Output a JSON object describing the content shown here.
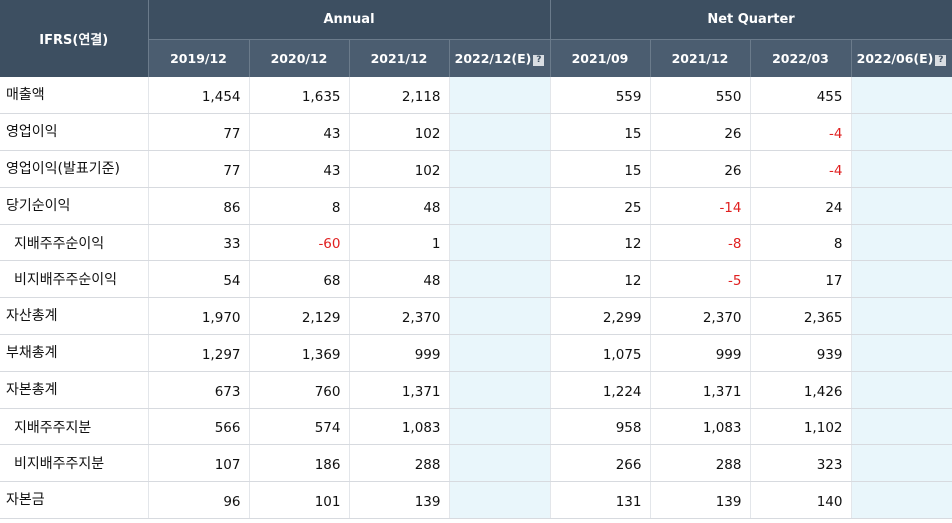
{
  "header": {
    "corner": "IFRS(연결)",
    "group_annual": "Annual",
    "group_quarter": "Net Quarter",
    "estimate_icon": "?",
    "columns": [
      "2019/12",
      "2020/12",
      "2021/12",
      "2022/12(E)",
      "2021/09",
      "2021/12",
      "2022/03",
      "2022/06(E)"
    ]
  },
  "rows": [
    {
      "label": "매출액",
      "values": [
        "1,454",
        "1,635",
        "2,118",
        "",
        "559",
        "550",
        "455",
        ""
      ]
    },
    {
      "label": "영업이익",
      "values": [
        "77",
        "43",
        "102",
        "",
        "15",
        "26",
        "-4",
        ""
      ]
    },
    {
      "label": "영업이익(발표기준)",
      "values": [
        "77",
        "43",
        "102",
        "",
        "15",
        "26",
        "-4",
        ""
      ]
    },
    {
      "label": "당기순이익",
      "values": [
        "86",
        "8",
        "48",
        "",
        "25",
        "-14",
        "24",
        ""
      ]
    },
    {
      "label": "지배주주순이익",
      "values": [
        "33",
        "-60",
        "1",
        "",
        "12",
        "-8",
        "8",
        ""
      ]
    },
    {
      "label": "비지배주주순이익",
      "values": [
        "54",
        "68",
        "48",
        "",
        "12",
        "-5",
        "17",
        ""
      ]
    },
    {
      "label": "자산총계",
      "values": [
        "1,970",
        "2,129",
        "2,370",
        "",
        "2,299",
        "2,370",
        "2,365",
        ""
      ]
    },
    {
      "label": "부채총계",
      "values": [
        "1,297",
        "1,369",
        "999",
        "",
        "1,075",
        "999",
        "939",
        ""
      ]
    },
    {
      "label": "자본총계",
      "values": [
        "673",
        "760",
        "1,371",
        "",
        "1,224",
        "1,371",
        "1,426",
        ""
      ]
    },
    {
      "label": "지배주주지분",
      "values": [
        "566",
        "574",
        "1,083",
        "",
        "958",
        "1,083",
        "1,102",
        ""
      ]
    },
    {
      "label": "비지배주주지분",
      "values": [
        "107",
        "186",
        "288",
        "",
        "266",
        "288",
        "323",
        ""
      ]
    },
    {
      "label": "자본금",
      "values": [
        "96",
        "101",
        "139",
        "",
        "131",
        "139",
        "140",
        ""
      ]
    }
  ]
}
